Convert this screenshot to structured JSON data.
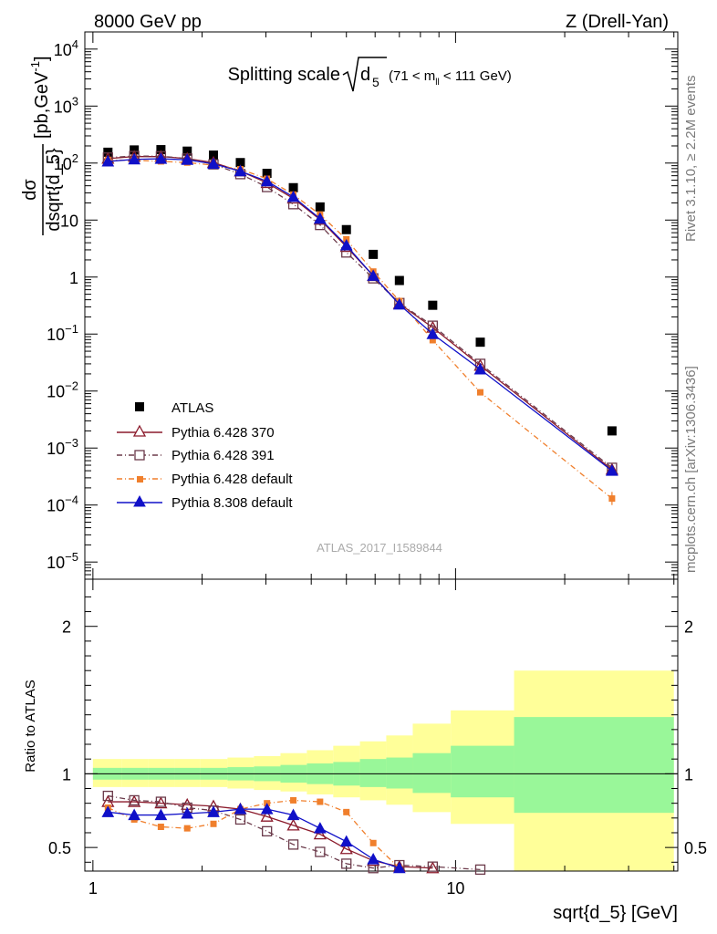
{
  "header": {
    "left": "8000 GeV pp",
    "right": "Z (Drell-Yan)"
  },
  "side_labels": {
    "rivet": "Rivet 3.1.10, ≥ 2.2M events",
    "mcplots": "mcplots.cern.ch [arXiv:1306.3436]"
  },
  "chart_data": {
    "type": "scatter",
    "title": "Splitting scale",
    "title_symbol": "d",
    "title_symbol_sub": "5",
    "title_range_pre": "(71 < m",
    "title_range_sub": "ll",
    "title_range_post": " < 111 GeV)",
    "analysis_tag": "ATLAS_2017_I1589844",
    "xlabel": "sqrt{d_5} [GeV]",
    "x_scale": "log",
    "xlim": [
      0.95,
      41
    ],
    "x_tick_labels": [
      "1",
      "10"
    ],
    "main": {
      "y_scale": "log",
      "ylim": [
        5e-06,
        20000
      ],
      "ylabel_num": "dσ",
      "ylabel_den": "dsqrt{d_5}",
      "ylabel_unit_pre": "[pb,GeV",
      "ylabel_unit_sup": "-1",
      "ylabel_unit_post": "]",
      "y_tick_labels": [
        {
          "base": "10",
          "exp": "4"
        },
        {
          "base": "10",
          "exp": "3"
        },
        {
          "base": "10",
          "exp": "2"
        },
        {
          "base": "10",
          "exp": ""
        },
        {
          "base": "1",
          "exp": ""
        },
        {
          "base": "10",
          "exp": "−1"
        },
        {
          "base": "10",
          "exp": "−2"
        },
        {
          "base": "10",
          "exp": "−3"
        },
        {
          "base": "10",
          "exp": "−4"
        },
        {
          "base": "10",
          "exp": "−5"
        }
      ],
      "y_tick_values": [
        10000,
        1000,
        100,
        10,
        1,
        0.1,
        0.01,
        0.001,
        0.0001,
        1e-05
      ],
      "legend_position": "lower-left",
      "x": [
        1.1,
        1.3,
        1.54,
        1.82,
        2.15,
        2.55,
        3.02,
        3.57,
        4.23,
        5.0,
        5.93,
        7.0,
        8.65,
        11.7,
        27.0
      ],
      "series": [
        {
          "name": "ATLAS",
          "color": "#000000",
          "marker": "square",
          "values": [
            155,
            170,
            172,
            162,
            138,
            102,
            66,
            37,
            17,
            6.8,
            2.5,
            0.87,
            0.32,
            0.072,
            0.002
          ]
        },
        {
          "name": "Pythia 6.428 370",
          "color": "#8b1a2b",
          "marker": "open-triangle",
          "dash": "",
          "values": [
            120,
            130,
            130,
            120,
            102,
            72,
            45,
            24,
            10.2,
            3.4,
            1.05,
            0.34,
            0.13,
            0.028,
            0.00042
          ]
        },
        {
          "name": "Pythia 6.428 391",
          "color": "#6b3a4a",
          "marker": "open-square",
          "dash": "6,3,1,3",
          "values": [
            125,
            133,
            132,
            120,
            95,
            64,
            38,
            19,
            8.2,
            2.7,
            0.95,
            0.35,
            0.14,
            0.03,
            0.00045
          ]
        },
        {
          "name": "Pythia 6.428 default",
          "color": "#f07f2c",
          "marker": "square-small",
          "dash": "6,3,1,3",
          "values": [
            113,
            112,
            107,
            102,
            92,
            78,
            53,
            28,
            12.5,
            4.6,
            1.25,
            0.38,
            0.078,
            0.0095,
            0.00013
          ]
        },
        {
          "name": "Pythia 8.308 default",
          "color": "#1010c8",
          "marker": "triangle",
          "dash": "",
          "values": [
            107,
            116,
            119,
            114,
            97,
            72,
            48,
            25.5,
            10.6,
            3.6,
            1.05,
            0.33,
            0.1,
            0.024,
            0.0004
          ]
        }
      ]
    },
    "ratio": {
      "ylabel": "Ratio to ATLAS",
      "ylim": [
        0.34,
        2.32
      ],
      "y_tick_labels": [
        "2",
        "1",
        "0.5"
      ],
      "y_tick_values": [
        2,
        1,
        0.5
      ],
      "bins": [
        1.0,
        1.2,
        1.42,
        1.68,
        1.98,
        2.35,
        2.78,
        3.29,
        3.89,
        4.6,
        5.45,
        6.44,
        7.62,
        9.7,
        14.5,
        40
      ],
      "band_green": [
        [
          0.96,
          1.04
        ],
        [
          0.96,
          1.04
        ],
        [
          0.96,
          1.04
        ],
        [
          0.96,
          1.04
        ],
        [
          0.96,
          1.04
        ],
        [
          0.955,
          1.045
        ],
        [
          0.95,
          1.05
        ],
        [
          0.94,
          1.06
        ],
        [
          0.93,
          1.07
        ],
        [
          0.92,
          1.08
        ],
        [
          0.91,
          1.1
        ],
        [
          0.9,
          1.11
        ],
        [
          0.87,
          1.14
        ],
        [
          0.84,
          1.19
        ],
        [
          0.735,
          1.385
        ]
      ],
      "band_yellow": [
        [
          0.91,
          1.1
        ],
        [
          0.91,
          1.1
        ],
        [
          0.91,
          1.1
        ],
        [
          0.91,
          1.1
        ],
        [
          0.91,
          1.1
        ],
        [
          0.9,
          1.11
        ],
        [
          0.89,
          1.12
        ],
        [
          0.88,
          1.14
        ],
        [
          0.86,
          1.16
        ],
        [
          0.84,
          1.19
        ],
        [
          0.82,
          1.22
        ],
        [
          0.79,
          1.26
        ],
        [
          0.74,
          1.34
        ],
        [
          0.66,
          1.43
        ],
        [
          0.34,
          1.7
        ]
      ],
      "series": [
        {
          "name": "Pythia 6.428 370",
          "values": [
            0.81,
            0.81,
            0.8,
            0.79,
            0.78,
            0.76,
            0.71,
            0.65,
            0.59,
            0.49,
            0.41,
            0.37,
            0.36
          ]
        },
        {
          "name": "Pythia 6.428 391",
          "values": [
            0.85,
            0.82,
            0.81,
            0.77,
            0.75,
            0.69,
            0.61,
            0.52,
            0.47,
            0.39,
            0.36,
            0.38,
            0.37,
            0.35
          ]
        },
        {
          "name": "Pythia 6.428 default",
          "values": [
            0.77,
            0.69,
            0.64,
            0.63,
            0.66,
            0.76,
            0.8,
            0.82,
            0.81,
            0.74,
            0.53,
            0.36
          ]
        },
        {
          "name": "Pythia 8.308 default",
          "values": [
            0.74,
            0.72,
            0.72,
            0.73,
            0.74,
            0.76,
            0.76,
            0.72,
            0.63,
            0.54,
            0.42,
            0.36
          ]
        }
      ]
    }
  }
}
